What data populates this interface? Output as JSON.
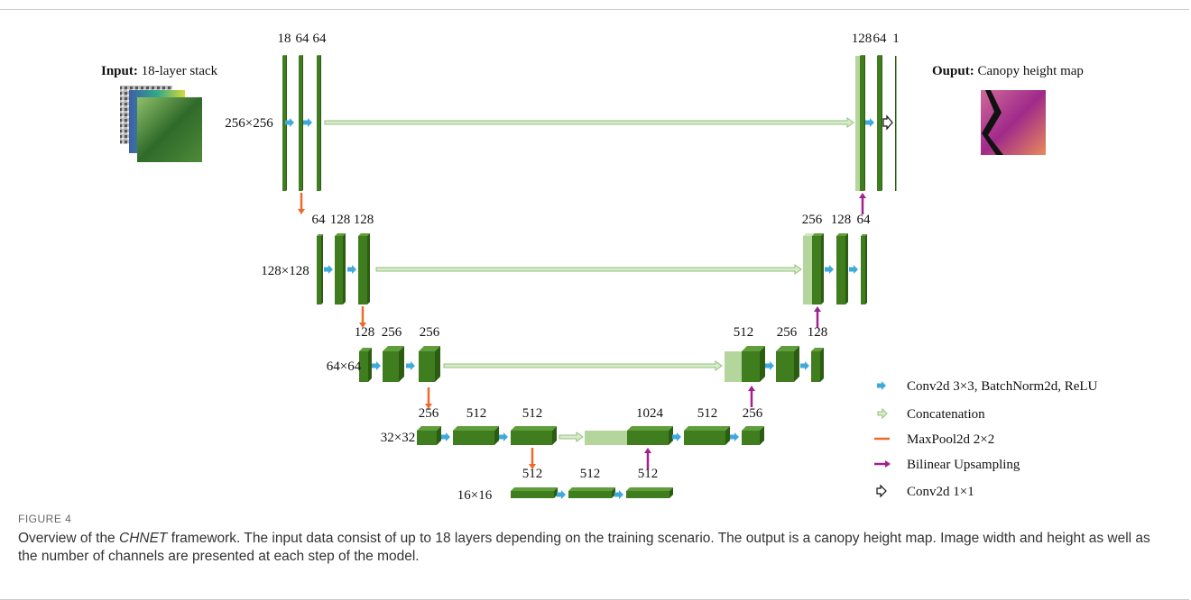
{
  "input": {
    "label": "Input:",
    "text": "18-layer stack"
  },
  "output": {
    "label": "Ouput:",
    "text": "Canopy height map"
  },
  "levels": [
    {
      "size": "256×256",
      "encoder": [
        18,
        64,
        64
      ],
      "decoder": [
        128,
        64,
        1
      ]
    },
    {
      "size": "128×128",
      "encoder": [
        64,
        128,
        128
      ],
      "decoder": [
        256,
        128,
        64
      ]
    },
    {
      "size": "64×64",
      "encoder": [
        128,
        256,
        256
      ],
      "decoder": [
        512,
        256,
        128
      ]
    },
    {
      "size": "32×32",
      "encoder": [
        256,
        512,
        512
      ],
      "decoder": [
        1024,
        512,
        256
      ]
    },
    {
      "size": "16×16",
      "encoder": [
        512,
        512,
        512
      ]
    }
  ],
  "legend": [
    "Conv2d 3×3, BatchNorm2d, ReLU",
    "Concatenation",
    "MaxPool2d 2×2",
    "Bilinear Upsampling",
    "Conv2d 1×1"
  ],
  "caption": {
    "label": "FIGURE 4",
    "text_before": "Overview of the ",
    "emphasis": "CHNET",
    "text_after": " framework. The input data consist of up to 18 layers depending on the training scenario. The output is a canopy height map. Image width and height as well as the number of channels are presented at each step of the model."
  }
}
